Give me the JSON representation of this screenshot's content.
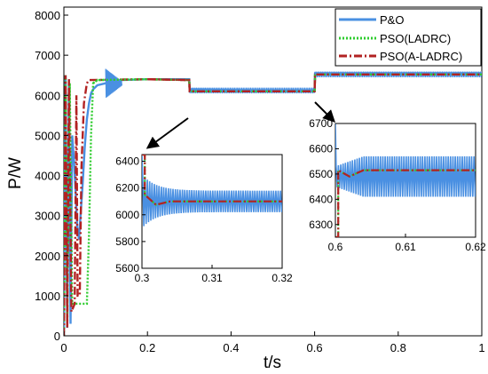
{
  "chart_data": {
    "type": "line",
    "xlabel": "t/s",
    "ylabel": "P/W",
    "xlim": [
      0,
      1
    ],
    "ylim": [
      0,
      8200
    ],
    "x_ticks": [
      0,
      0.2,
      0.4,
      0.6,
      0.8,
      1
    ],
    "y_ticks": [
      0,
      1000,
      2000,
      3000,
      4000,
      5000,
      6000,
      7000,
      8000
    ],
    "grid": false,
    "legend": {
      "placement": "top-right",
      "entries": [
        "P&O",
        "PSO(LADRC)",
        "PSO(A-LADRC)"
      ]
    },
    "series": [
      {
        "name": "P&O",
        "color": "#4a90e2",
        "style": "solid",
        "points": [
          [
            0,
            0
          ],
          [
            0.004,
            6500
          ],
          [
            0.008,
            200
          ],
          [
            0.012,
            6400
          ],
          [
            0.016,
            300
          ],
          [
            0.02,
            5000
          ],
          [
            0.024,
            4400
          ],
          [
            0.028,
            3600
          ],
          [
            0.032,
            2700
          ],
          [
            0.036,
            2400
          ],
          [
            0.04,
            3000
          ],
          [
            0.045,
            3800
          ],
          [
            0.05,
            4700
          ],
          [
            0.055,
            5400
          ],
          [
            0.06,
            5800
          ],
          [
            0.065,
            6050
          ],
          [
            0.07,
            6150
          ],
          [
            0.08,
            6250
          ],
          [
            0.1,
            6300
          ],
          [
            0.12,
            6350
          ],
          [
            0.14,
            6380
          ],
          [
            0.2,
            6400
          ],
          [
            0.3,
            6400
          ],
          [
            0.301,
            6150
          ],
          [
            0.6,
            6100
          ],
          [
            0.601,
            6550
          ],
          [
            1,
            6550
          ]
        ]
      },
      {
        "name": "PSO(LADRC)",
        "color": "#2ecc2e",
        "style": "dotted",
        "points": [
          [
            0,
            0
          ],
          [
            0.004,
            6500
          ],
          [
            0.008,
            300
          ],
          [
            0.014,
            6300
          ],
          [
            0.02,
            800
          ],
          [
            0.03,
            800
          ],
          [
            0.04,
            800
          ],
          [
            0.05,
            800
          ],
          [
            0.055,
            800
          ],
          [
            0.06,
            2500
          ],
          [
            0.065,
            5000
          ],
          [
            0.07,
            6300
          ],
          [
            0.08,
            6380
          ],
          [
            0.2,
            6400
          ],
          [
            0.3,
            6380
          ],
          [
            0.301,
            6100
          ],
          [
            0.6,
            6100
          ],
          [
            0.601,
            6520
          ],
          [
            1,
            6520
          ]
        ]
      },
      {
        "name": "PSO(A-LADRC)",
        "color": "#b22222",
        "style": "dashdot",
        "points": [
          [
            0,
            0
          ],
          [
            0.004,
            6500
          ],
          [
            0.008,
            200
          ],
          [
            0.012,
            6400
          ],
          [
            0.018,
            600
          ],
          [
            0.026,
            800
          ],
          [
            0.03,
            6000
          ],
          [
            0.033,
            1000
          ],
          [
            0.038,
            1000
          ],
          [
            0.042,
            4200
          ],
          [
            0.048,
            5800
          ],
          [
            0.055,
            6300
          ],
          [
            0.06,
            6380
          ],
          [
            0.2,
            6400
          ],
          [
            0.3,
            6380
          ],
          [
            0.301,
            6100
          ],
          [
            0.6,
            6100
          ],
          [
            0.601,
            6520
          ],
          [
            1,
            6520
          ]
        ]
      }
    ],
    "insets": [
      {
        "xlim": [
          0.3,
          0.32
        ],
        "ylim": [
          5600,
          6450
        ],
        "x_ticks": [
          "0.3",
          "0.31",
          "0.32"
        ],
        "y_ticks": [
          "5600",
          "5800",
          "6000",
          "6200",
          "6400"
        ],
        "series": [
          {
            "name": "P&O",
            "description": "oscillating around 6100 W with amplitude about 80 W",
            "center": 6100,
            "amplitude": 80
          },
          {
            "name": "PSO(LADRC)",
            "value": 6100
          },
          {
            "name": "PSO(A-LADRC)",
            "value": 6100
          }
        ]
      },
      {
        "xlim": [
          0.6,
          0.62
        ],
        "ylim": [
          6250,
          6700
        ],
        "x_ticks": [
          "0.6",
          "0.61",
          "0.62"
        ],
        "y_ticks": [
          "6300",
          "6400",
          "6500",
          "6600",
          "6700"
        ],
        "series": [
          {
            "name": "P&O",
            "center": 6490,
            "amplitude": 80
          },
          {
            "name": "PSO(LADRC)",
            "value": 6515
          },
          {
            "name": "PSO(A-LADRC)",
            "value": 6515
          }
        ]
      }
    ]
  }
}
